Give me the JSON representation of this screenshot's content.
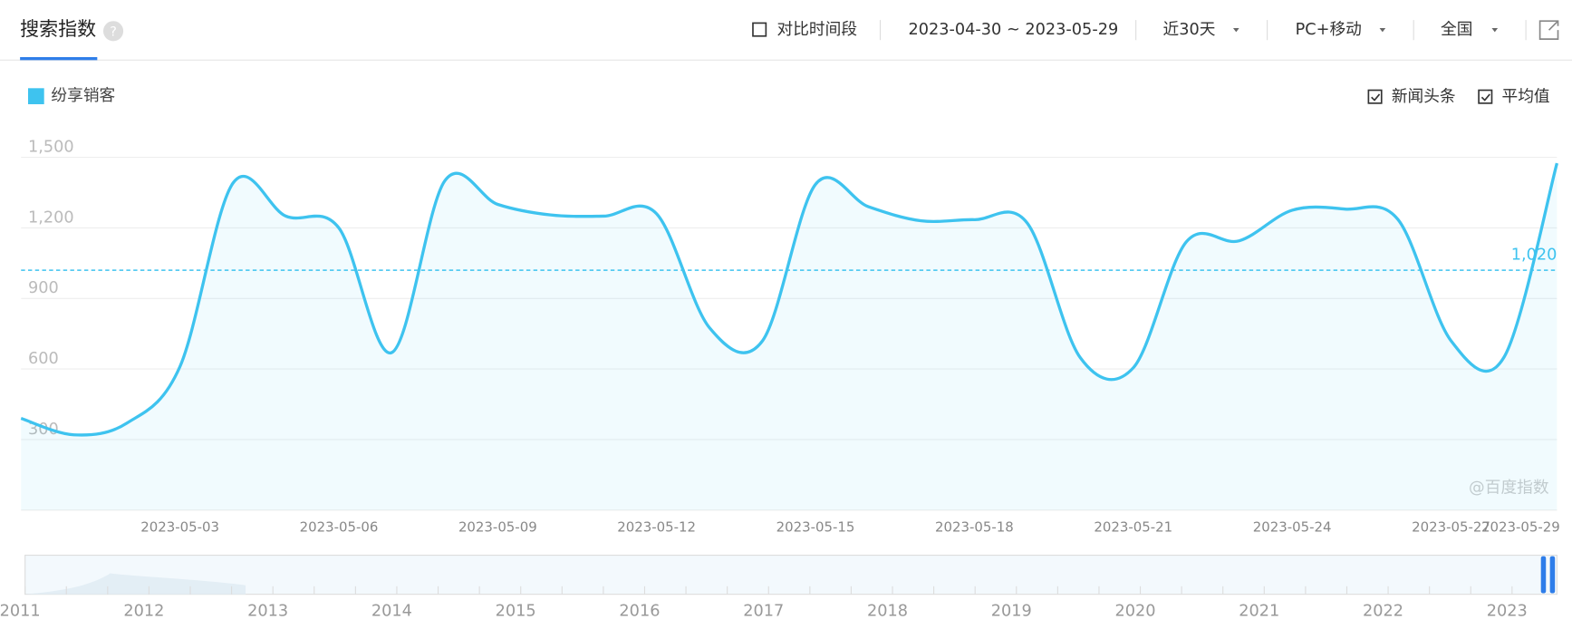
{
  "header": {
    "title": "搜索指数",
    "compare": "对比时间段",
    "date_range": "2023-04-30 ~ 2023-05-29",
    "period": "近30天",
    "device": "PC+移动",
    "region": "全国"
  },
  "chart_data": {
    "type": "line",
    "categories": [
      null,
      null,
      null,
      "2023-05-03",
      null,
      null,
      "2023-05-06",
      null,
      null,
      "2023-05-09",
      null,
      null,
      "2023-05-12",
      null,
      null,
      "2023-05-15",
      null,
      null,
      "2023-05-18",
      null,
      null,
      "2023-05-21",
      null,
      null,
      "2023-05-24",
      null,
      null,
      "2023-05-27",
      null,
      "2023-05-29"
    ],
    "series": [
      {
        "name": "纷享销客",
        "color": "#3ec3ef",
        "values": [
          390,
          320,
          370,
          610,
          1390,
          1250,
          1200,
          670,
          1400,
          1300,
          1255,
          1250,
          1260,
          775,
          720,
          1385,
          1290,
          1230,
          1235,
          1220,
          648,
          605,
          1140,
          1145,
          1275,
          1280,
          1235,
          720,
          650,
          1475
        ]
      }
    ],
    "ylim": [
      0,
      1500
    ],
    "yticks": [
      300,
      600,
      900,
      {
        "value": 1200,
        "label": "1,200"
      },
      {
        "value": 1500,
        "label": "1,500"
      }
    ],
    "grid": true,
    "average": {
      "value": 1020,
      "label": "1,020"
    },
    "options": [
      "新闻头条",
      "平均值"
    ],
    "watermark": "@百度指数",
    "navigator_years": [
      2011,
      2012,
      2013,
      2014,
      2015,
      2016,
      2017,
      2018,
      2019,
      2020,
      2021,
      2022,
      2023
    ]
  }
}
